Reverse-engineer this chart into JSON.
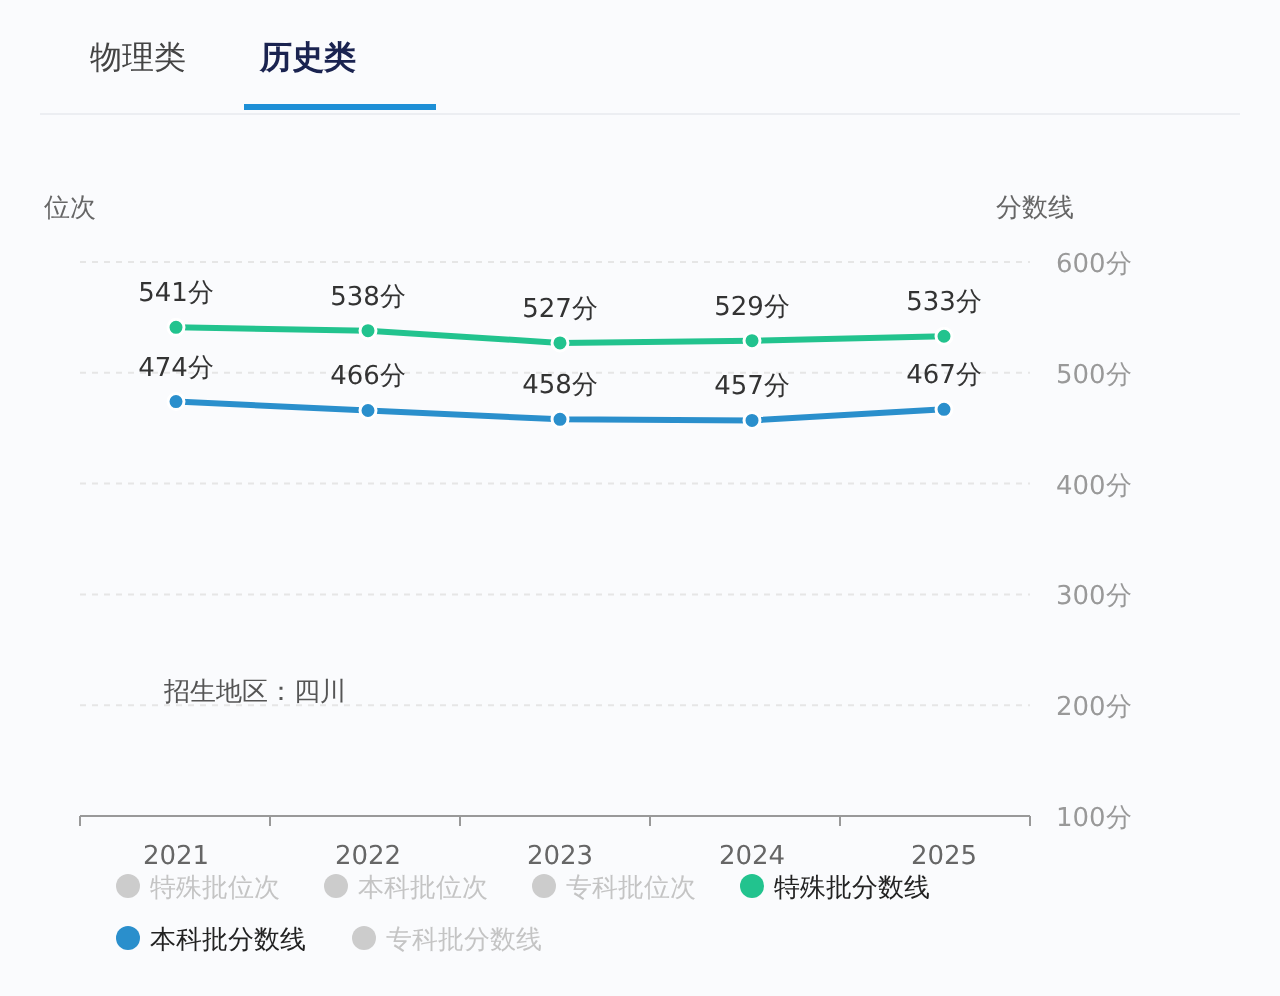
{
  "chart_data": {
    "type": "line",
    "ylabel": "分数线",
    "categories": [
      "2021",
      "2022",
      "2023",
      "2024",
      "2025"
    ],
    "ylim": [
      100,
      600
    ],
    "yticks": [
      {
        "value": 100,
        "label": "100分"
      },
      {
        "value": 200,
        "label": "200分"
      },
      {
        "value": 300,
        "label": "300分"
      },
      {
        "value": 400,
        "label": "400分"
      },
      {
        "value": 500,
        "label": "500分"
      },
      {
        "value": 600,
        "label": "600分"
      }
    ],
    "grid": "y",
    "legend": "bottom",
    "marker": "circle",
    "line_style": "solid",
    "series": [
      {
        "name": "特殊批位次",
        "color": "#cccccc",
        "values": [
          null,
          null,
          null,
          null,
          null
        ]
      },
      {
        "name": "本科批位次",
        "color": "#cccccc",
        "values": [
          null,
          null,
          null,
          null,
          null
        ]
      },
      {
        "name": "专科批位次",
        "color": "#cccccc",
        "values": [
          null,
          null,
          null,
          null,
          null
        ]
      },
      {
        "name": "特殊批分数线",
        "color": "#22c38e",
        "values": [
          541,
          538,
          527,
          529,
          533
        ],
        "value_labels": [
          "541分",
          "538分",
          "527分",
          "529分",
          "533分"
        ]
      },
      {
        "name": "本科批分数线",
        "color": "#2a8fcc",
        "values": [
          474,
          466,
          458,
          457,
          467
        ],
        "value_labels": [
          "474分",
          "466分",
          "458分",
          "457分",
          "467分"
        ]
      },
      {
        "name": "专科批分数线",
        "color": "#cccccc",
        "values": [
          null,
          null,
          null,
          null,
          null
        ]
      }
    ],
    "annotations": [
      "物理类",
      "历史类",
      "位次",
      "招生地区：四川"
    ]
  }
}
